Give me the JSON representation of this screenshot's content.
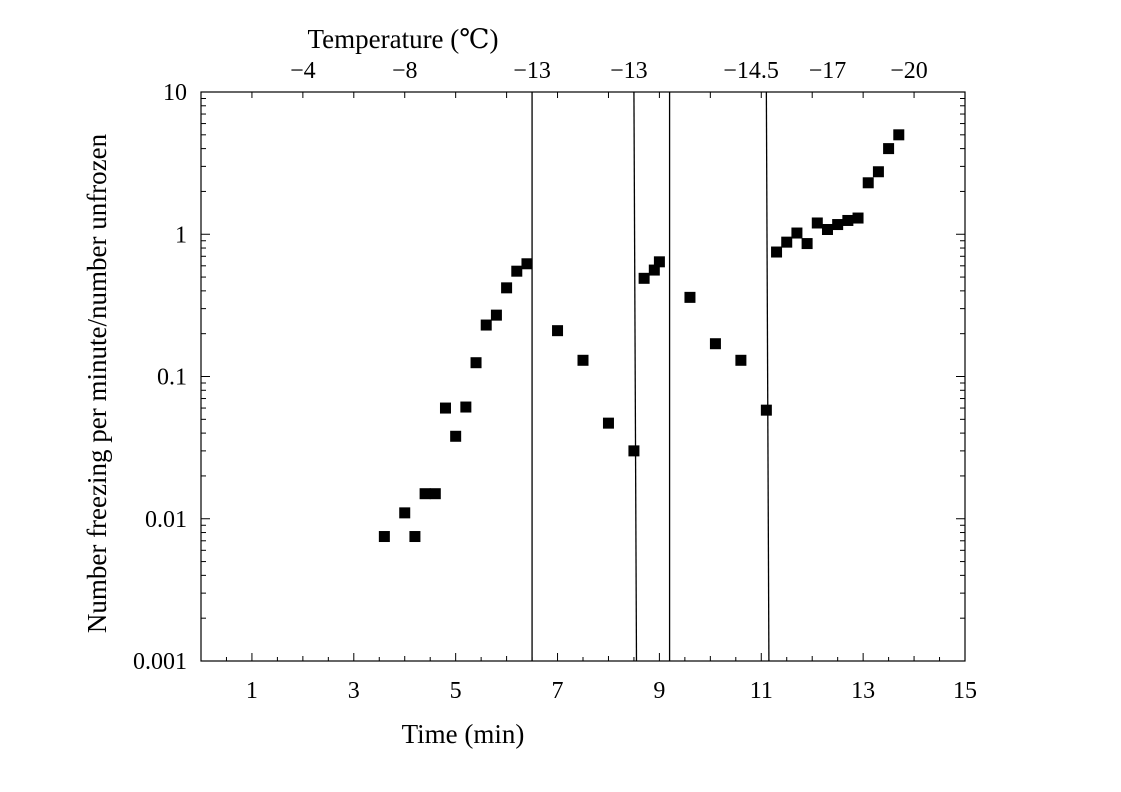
{
  "chart_data": {
    "type": "scatter",
    "xlabel": "Time (min)",
    "ylabel": "Number freezing per minute/number unfrozen",
    "top_xlabel": "Temperature (℃)",
    "xlim": [
      0,
      15
    ],
    "ylim": [
      0.001,
      10
    ],
    "yscale": "log",
    "x_ticks": [
      1,
      3,
      5,
      7,
      9,
      11,
      13,
      15
    ],
    "y_ticks": [
      {
        "value": 0.001,
        "label": "0.001"
      },
      {
        "value": 0.01,
        "label": "0.01"
      },
      {
        "value": 0.1,
        "label": "0.1"
      },
      {
        "value": 1,
        "label": "1"
      },
      {
        "value": 10,
        "label": "10"
      }
    ],
    "top_ticks": [
      {
        "time": 2.0,
        "label": "−4"
      },
      {
        "time": 4.0,
        "label": "−8"
      },
      {
        "time": 6.5,
        "label": "−13"
      },
      {
        "time": 8.4,
        "label": "−13"
      },
      {
        "time": 10.8,
        "label": "−14.5"
      },
      {
        "time": 12.3,
        "label": "−17"
      },
      {
        "time": 13.9,
        "label": "−20"
      }
    ],
    "vertical_lines": [
      {
        "x_top": 6.5,
        "x_bottom": 6.5
      },
      {
        "x_top": 8.5,
        "x_bottom": 8.55
      },
      {
        "x_top": 9.2,
        "x_bottom": 9.2
      },
      {
        "x_top": 11.1,
        "x_bottom": 11.15
      }
    ],
    "grid": false,
    "legend": "none",
    "marker": "filled-square",
    "color": "#000000",
    "points": [
      {
        "x": 3.6,
        "y": 0.0075
      },
      {
        "x": 4.0,
        "y": 0.011
      },
      {
        "x": 4.2,
        "y": 0.0075
      },
      {
        "x": 4.4,
        "y": 0.015
      },
      {
        "x": 4.6,
        "y": 0.015
      },
      {
        "x": 4.8,
        "y": 0.06
      },
      {
        "x": 5.0,
        "y": 0.038
      },
      {
        "x": 5.2,
        "y": 0.061
      },
      {
        "x": 5.4,
        "y": 0.125
      },
      {
        "x": 5.6,
        "y": 0.23
      },
      {
        "x": 5.8,
        "y": 0.27
      },
      {
        "x": 6.0,
        "y": 0.42
      },
      {
        "x": 6.2,
        "y": 0.55
      },
      {
        "x": 6.4,
        "y": 0.62
      },
      {
        "x": 7.0,
        "y": 0.21
      },
      {
        "x": 7.5,
        "y": 0.13
      },
      {
        "x": 8.0,
        "y": 0.047
      },
      {
        "x": 8.5,
        "y": 0.03
      },
      {
        "x": 8.7,
        "y": 0.49
      },
      {
        "x": 8.9,
        "y": 0.56
      },
      {
        "x": 9.0,
        "y": 0.64
      },
      {
        "x": 9.6,
        "y": 0.36
      },
      {
        "x": 10.1,
        "y": 0.17
      },
      {
        "x": 10.6,
        "y": 0.13
      },
      {
        "x": 11.1,
        "y": 0.058
      },
      {
        "x": 11.3,
        "y": 0.75
      },
      {
        "x": 11.5,
        "y": 0.88
      },
      {
        "x": 11.7,
        "y": 1.02
      },
      {
        "x": 11.9,
        "y": 0.86
      },
      {
        "x": 12.1,
        "y": 1.2
      },
      {
        "x": 12.3,
        "y": 1.08
      },
      {
        "x": 12.5,
        "y": 1.17
      },
      {
        "x": 12.7,
        "y": 1.25
      },
      {
        "x": 12.9,
        "y": 1.3
      },
      {
        "x": 13.1,
        "y": 2.3
      },
      {
        "x": 13.3,
        "y": 2.75
      },
      {
        "x": 13.5,
        "y": 4.0
      },
      {
        "x": 13.7,
        "y": 5.0
      }
    ]
  }
}
